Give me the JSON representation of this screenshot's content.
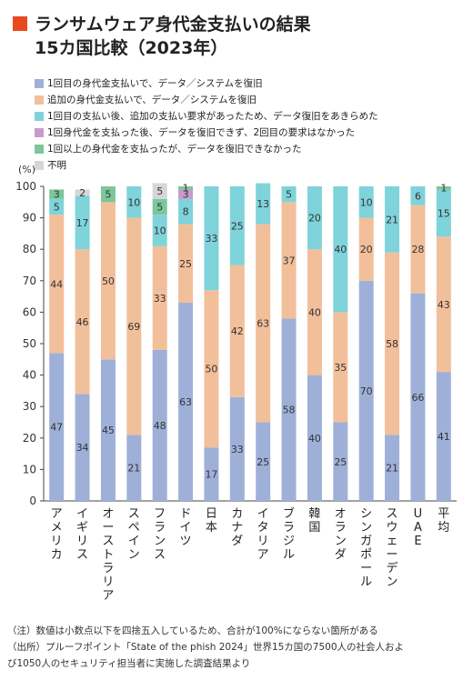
{
  "title": {
    "line1": "ランサムウェア身代金支払いの結果",
    "line2": "15カ国比較（2023年）",
    "marker_color": "#e8491d"
  },
  "chart_data": {
    "type": "bar",
    "stacked": true,
    "orientation": "vertical",
    "y_unit": "(%)",
    "ylim": [
      0,
      100
    ],
    "yticks": [
      0,
      10,
      20,
      30,
      40,
      50,
      60,
      70,
      80,
      90,
      100
    ],
    "grid": false,
    "legend_position": "top-left",
    "categories": [
      "アメリカ",
      "イギリス",
      "オーストラリア",
      "スペイン",
      "フランス",
      "ドイツ",
      "日本",
      "カナダ",
      "イタリア",
      "ブラジル",
      "韓国",
      "オランダ",
      "シンガポール",
      "スウェーデン",
      "UAE",
      "平均"
    ],
    "series": [
      {
        "name": "1回目の身代金支払いで、データ／システムを復旧",
        "color": "#9fb0d8",
        "values": [
          47,
          34,
          45,
          21,
          48,
          63,
          17,
          33,
          25,
          58,
          40,
          25,
          70,
          21,
          66,
          41
        ]
      },
      {
        "name": "追加の身代金支払いで、データ／システムを復旧",
        "color": "#f2bf9b",
        "values": [
          44,
          46,
          50,
          69,
          33,
          25,
          50,
          42,
          63,
          37,
          40,
          35,
          20,
          58,
          28,
          43
        ]
      },
      {
        "name": "1回目の支払い後、追加の支払い要求があったため、データ復旧をあきらめた",
        "color": "#7fd3da",
        "values": [
          5,
          17,
          0,
          10,
          10,
          8,
          33,
          25,
          13,
          5,
          20,
          40,
          10,
          21,
          6,
          15
        ]
      },
      {
        "name": "1回身代金を支払った後、データを復旧できず、2回目の要求はなかった",
        "color": "#c79bcb",
        "values": [
          0,
          0,
          0,
          0,
          0,
          3,
          0,
          0,
          0,
          0,
          0,
          0,
          0,
          0,
          0,
          0
        ]
      },
      {
        "name": "1回以上の身代金を支払ったが、データを復旧できなかった",
        "color": "#7cc69a",
        "values": [
          3,
          0,
          5,
          0,
          5,
          1,
          0,
          0,
          0,
          0,
          0,
          0,
          0,
          0,
          0,
          1
        ]
      },
      {
        "name": "不明",
        "color": "#d6d6d6",
        "values": [
          0,
          2,
          0,
          0,
          5,
          0,
          0,
          0,
          0,
          0,
          0,
          0,
          0,
          0,
          0,
          0
        ]
      }
    ]
  },
  "notes": [
    "（注）数値は小数点以下を四捨五入しているため、合計が100%にならない箇所がある",
    "（出所）プルーフポイント「State of the phish 2024」世界15カ国の7500人の社会人およ",
    "び1050人のセキュリティ担当者に実施した調査結果より"
  ]
}
